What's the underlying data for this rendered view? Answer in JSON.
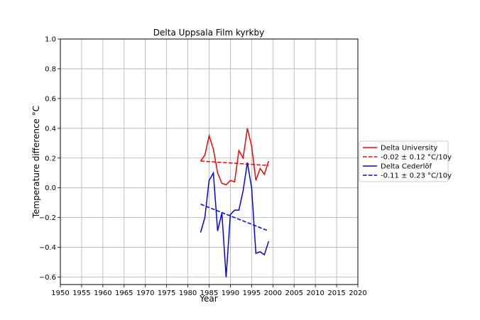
{
  "chart_data": {
    "type": "line",
    "title": "Delta Uppsala Film kyrkby",
    "xlabel": "Year",
    "ylabel": "Temperature difference °C",
    "xlim": [
      1950,
      2020
    ],
    "ylim": [
      -0.65,
      1.0
    ],
    "xticks": [
      "1950",
      "1955",
      "1960",
      "1965",
      "1970",
      "1975",
      "1980",
      "1985",
      "1990",
      "1995",
      "2000",
      "2005",
      "2010",
      "2015",
      "2020"
    ],
    "yticks": [
      "−0.6",
      "−0.4",
      "−0.2",
      "0.0",
      "0.2",
      "0.4",
      "0.6",
      "0.8",
      "1.0"
    ],
    "ytick_values": [
      -0.6,
      -0.4,
      -0.2,
      0.0,
      0.2,
      0.4,
      0.6,
      0.8,
      1.0
    ],
    "xtick_values": [
      1950,
      1955,
      1960,
      1965,
      1970,
      1975,
      1980,
      1985,
      1990,
      1995,
      2000,
      2005,
      2010,
      2015,
      2020
    ],
    "grid": true,
    "legend_position": "right",
    "series": [
      {
        "name": "Delta University",
        "color": "#ff0000",
        "style": "solid",
        "x": [
          1983,
          1984,
          1985,
          1986,
          1987,
          1988,
          1989,
          1990,
          1991,
          1992,
          1993,
          1994,
          1995,
          1996,
          1997,
          1998,
          1999
        ],
        "y": [
          0.18,
          0.22,
          0.35,
          0.26,
          0.1,
          0.03,
          0.02,
          0.05,
          0.04,
          0.25,
          0.2,
          0.4,
          0.28,
          0.05,
          0.13,
          0.09,
          0.18
        ]
      },
      {
        "name": "-0.02 ± 0.12 °C/10y",
        "color": "#ff0000",
        "style": "dashed",
        "x": [
          1983,
          1999
        ],
        "y": [
          0.18,
          0.15
        ]
      },
      {
        "name": "Delta Cederlöf",
        "color": "#0000ff",
        "style": "solid",
        "x": [
          1983,
          1984,
          1985,
          1986,
          1987,
          1988,
          1989,
          1990,
          1991,
          1992,
          1993,
          1994,
          1995,
          1996,
          1997,
          1998,
          1999
        ],
        "y": [
          -0.3,
          -0.2,
          0.05,
          0.1,
          -0.29,
          -0.17,
          -0.6,
          -0.18,
          -0.15,
          -0.15,
          -0.02,
          0.17,
          0.0,
          -0.44,
          -0.43,
          -0.45,
          -0.36
        ]
      },
      {
        "name": "-0.11 ± 0.23 °C/10y",
        "color": "#0000ff",
        "style": "dashed",
        "x": [
          1983,
          1999
        ],
        "y": [
          -0.11,
          -0.29
        ]
      }
    ]
  }
}
